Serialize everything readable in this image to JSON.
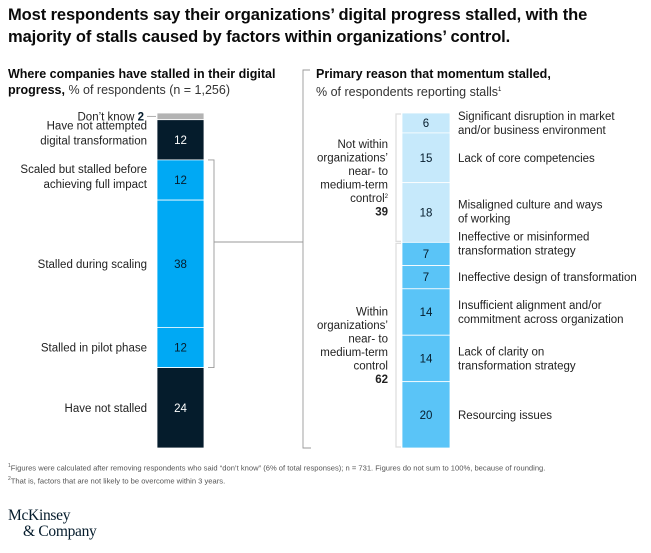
{
  "title": "Most respondents say their organizations’ digital progress stalled, with the majority of stalls caused by factors within organizations’ control.",
  "left_panel": {
    "heading_bold": "Where companies have stalled in their digital progress,",
    "heading_light": " % of respondents (n = 1,256)"
  },
  "right_panel": {
    "heading_bold": "Primary reason that momentum stalled,",
    "heading_light": "% of respondents reporting stalls",
    "heading_footnote": "1"
  },
  "chart_data": [
    {
      "type": "bar",
      "stacked": true,
      "title": "Where companies have stalled in their digital progress, % of respondents (n = 1,256)",
      "categories": [
        "Don’t know",
        "Have not attempted digital transformation",
        "Scaled but stalled before achieving full impact",
        "Stalled during scaling",
        "Stalled in pilot phase",
        "Have not stalled"
      ],
      "values": [
        2,
        12,
        12,
        38,
        12,
        24
      ],
      "colors": [
        "#b3b3b3",
        "#051c2c",
        "#00a9f4",
        "#00a9f4",
        "#00a9f4",
        "#051c2c"
      ],
      "label_lines": [
        [
          "Don’t know"
        ],
        [
          "Have not attempted",
          "digital transformation"
        ],
        [
          "Scaled but stalled before",
          "achieving full impact"
        ],
        [
          "Stalled during scaling"
        ],
        [
          "Stalled in pilot phase"
        ],
        [
          "Have not stalled"
        ]
      ],
      "bracket": "Scaled but stalled before achieving full impact through Stalled in pilot phase"
    },
    {
      "type": "bar",
      "stacked": true,
      "title": "Primary reason that momentum stalled, % of respondents reporting stalls",
      "categories": [
        "Significant disruption in market and/or business environment",
        "Lack of core competencies",
        "Misaligned culture and ways of working",
        "Ineffective or misinformed transformation strategy",
        "Ineffective design of transformation",
        "Insufficient alignment and/or commitment across organization",
        "Lack of clarity on transformation strategy",
        "Resourcing issues"
      ],
      "values": [
        6,
        15,
        18,
        7,
        7,
        14,
        14,
        20
      ],
      "colors": [
        "#c6e9fb",
        "#c6e9fb",
        "#c6e9fb",
        "#5ac4f7",
        "#5ac4f7",
        "#5ac4f7",
        "#5ac4f7",
        "#5ac4f7"
      ],
      "label_lines": [
        [
          "Significant disruption in market",
          "and/or business environment"
        ],
        [
          "Lack of core competencies"
        ],
        [
          "Misaligned culture and ways",
          "of working"
        ],
        [
          "Ineffective or misinformed",
          "transformation strategy"
        ],
        [
          "Ineffective design of transformation"
        ],
        [
          "Insufficient alignment and/or",
          "commitment across organization"
        ],
        [
          "Lack of clarity on",
          "transformation strategy"
        ],
        [
          "Resourcing issues"
        ]
      ],
      "groups": [
        {
          "name": "Not within organizations’ near- to medium-term control",
          "lines": [
            "Not within",
            "organizations’",
            "near- to",
            "medium-term",
            "control"
          ],
          "footnote": "2",
          "total": 39,
          "members": [
            0,
            1,
            2
          ]
        },
        {
          "name": "Within organizations’ near- to medium-term control",
          "lines": [
            "Within",
            "organizations’",
            "near- to",
            "medium-term",
            "control"
          ],
          "footnote": "",
          "total": 62,
          "members": [
            3,
            4,
            5,
            6,
            7
          ]
        }
      ]
    }
  ],
  "footnotes": [
    {
      "mark": "1",
      "text": "Figures were calculated after removing respondents who said “don’t know” (6% of total responses); n = 731. Figures do not sum to 100%, because of rounding."
    },
    {
      "mark": "2",
      "text": "That is, factors that are not likely to be overcome within 3 years."
    }
  ],
  "logo": {
    "line1": "McKinsey",
    "line2": "& Company"
  }
}
